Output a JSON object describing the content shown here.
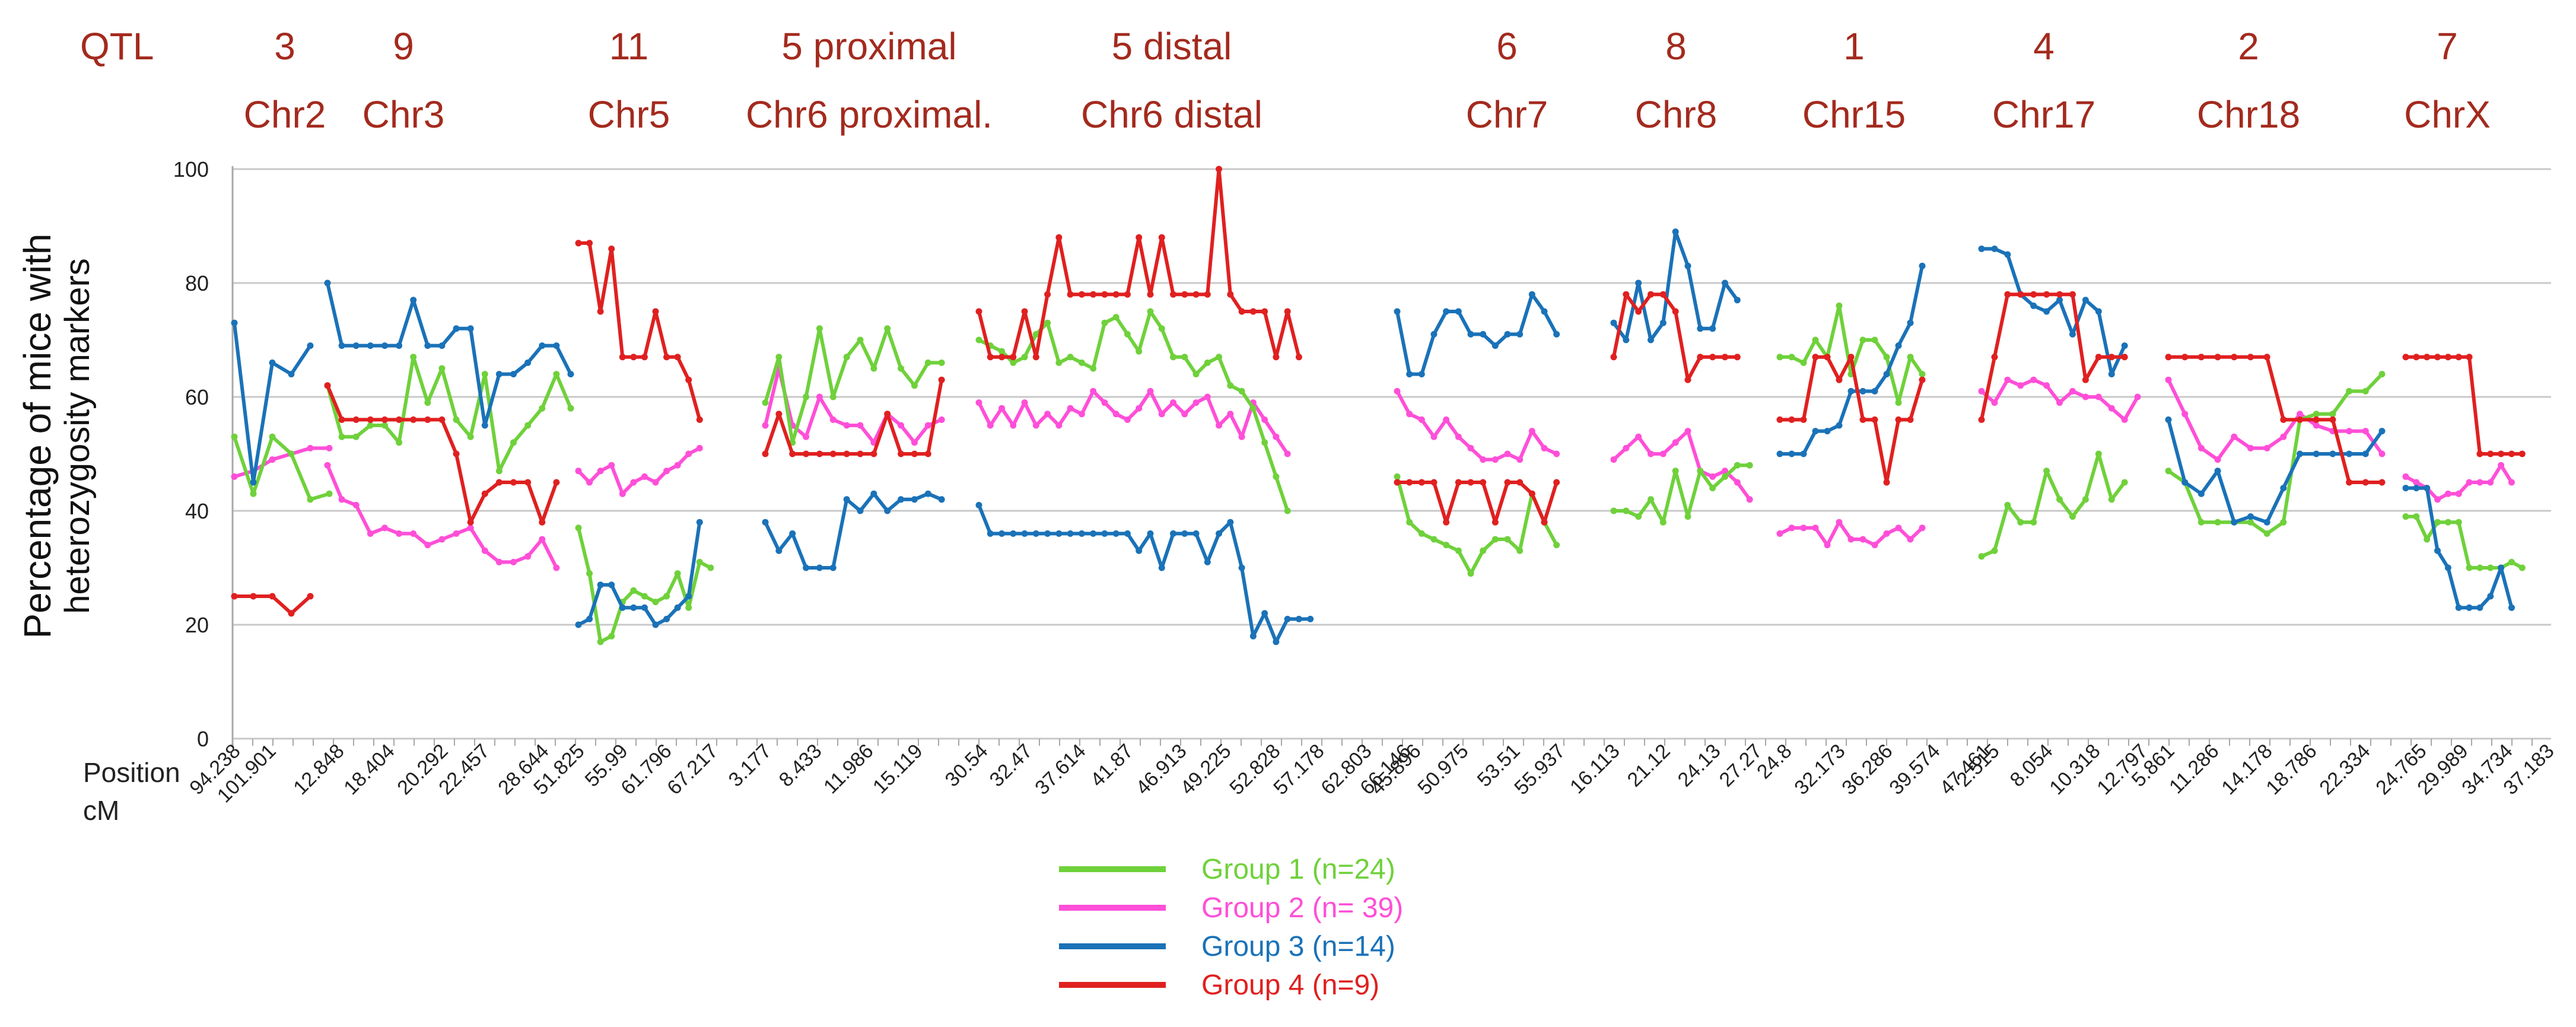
{
  "chart_data": {
    "type": "line",
    "ylabel_line1": "Percentage of mice with",
    "ylabel_line2": "heterozygosity markers",
    "ylim": [
      0,
      100
    ],
    "yticks": [
      "0",
      "20",
      "40",
      "60",
      "80",
      "100"
    ],
    "header_row_label": "QTL",
    "position_label_line1": "Position",
    "position_label_line2": "cM",
    "colors": {
      "group1": "#6fd13b",
      "group2": "#ff4fd8",
      "group3": "#1a72b8",
      "group4": "#e02020",
      "header": "#a32a1e",
      "grid": "#c9c9c9"
    },
    "legend": [
      {
        "label": "Group 1 (n=24)",
        "color": "#6fd13b"
      },
      {
        "label": "Group 2 (n= 39)",
        "color": "#ff4fd8"
      },
      {
        "label": "Group 3 (n=14)",
        "color": "#1a72b8"
      },
      {
        "label": "Group 4 (n=9)",
        "color": "#e02020"
      }
    ],
    "headers": [
      {
        "qtl": "3",
        "chr": "Chr2"
      },
      {
        "qtl": "9",
        "chr": "Chr3"
      },
      {
        "qtl": "11",
        "chr": "Chr5"
      },
      {
        "qtl": "5 proximal",
        "chr": "Chr6 proximal."
      },
      {
        "qtl": "5 distal",
        "chr": "Chr6 distal"
      },
      {
        "qtl": "6",
        "chr": "Chr7"
      },
      {
        "qtl": "8",
        "chr": "Chr8"
      },
      {
        "qtl": "1",
        "chr": "Chr15"
      },
      {
        "qtl": "4",
        "chr": "Chr17"
      },
      {
        "qtl": "2",
        "chr": "Chr18"
      },
      {
        "qtl": "7",
        "chr": "ChrX"
      }
    ],
    "position_ticks": [
      "94.238",
      "101.901",
      "12.848",
      "18.404",
      "20.292",
      "22.457",
      "28.644",
      "51.825",
      "55.99",
      "61.796",
      "67.217",
      "3.177",
      "8.433",
      "11.986",
      "15.119",
      "30.54",
      "32.47",
      "37.614",
      "41.87",
      "46.913",
      "49.225",
      "52.828",
      "57.178",
      "62.803",
      "66.146",
      "45.896",
      "50.975",
      "53.51",
      "55.937",
      "16.113",
      "21.12",
      "24.13",
      "27.27",
      "24.8",
      "32.173",
      "36.286",
      "39.574",
      "47.461",
      "2.515",
      "8.054",
      "10.318",
      "12.797",
      "5.861",
      "11.286",
      "14.178",
      "18.786",
      "22.334",
      "24.765",
      "29.989",
      "34.734",
      "37.183"
    ],
    "segments": [
      {
        "chr": "Chr2",
        "n": 6,
        "group1": [
          53,
          43,
          53,
          50,
          42,
          43
        ],
        "group2": [
          46,
          47,
          49,
          50,
          51,
          51
        ],
        "group3": [
          73,
          45,
          66,
          64,
          69,
          null
        ],
        "group4": [
          25,
          25,
          25,
          22,
          25,
          null
        ]
      },
      {
        "chr": "Chr3",
        "n": 18,
        "group1": [
          62,
          53,
          53,
          55,
          55,
          52,
          67,
          59,
          65,
          56,
          53,
          64,
          47,
          52,
          55,
          58,
          64,
          58
        ],
        "group2": [
          48,
          42,
          41,
          36,
          37,
          36,
          36,
          34,
          35,
          36,
          37,
          33,
          31,
          31,
          32,
          35,
          30,
          null
        ],
        "group3": [
          80,
          69,
          69,
          69,
          69,
          69,
          77,
          69,
          69,
          72,
          72,
          55,
          64,
          64,
          66,
          69,
          69,
          64
        ],
        "group4": [
          62,
          56,
          56,
          56,
          56,
          56,
          56,
          56,
          56,
          50,
          38,
          43,
          45,
          45,
          45,
          38,
          45,
          null
        ]
      },
      {
        "chr": "Chr5",
        "n": 15,
        "group1": [
          37,
          29,
          17,
          18,
          24,
          26,
          25,
          24,
          25,
          29,
          23,
          31,
          30,
          null,
          null
        ],
        "group2": [
          47,
          45,
          47,
          48,
          43,
          45,
          46,
          45,
          47,
          48,
          50,
          51,
          null,
          null,
          null
        ],
        "group3": [
          20,
          21,
          27,
          27,
          23,
          23,
          23,
          20,
          21,
          23,
          25,
          38,
          null,
          null,
          null
        ],
        "group4": [
          87,
          87,
          75,
          86,
          67,
          67,
          67,
          75,
          67,
          67,
          63,
          56,
          null,
          null,
          null
        ]
      },
      {
        "chr": "Chr6 proximal.",
        "n": 15,
        "group1": [
          59,
          67,
          52,
          60,
          72,
          60,
          67,
          70,
          65,
          72,
          65,
          62,
          66,
          66,
          null
        ],
        "group2": [
          55,
          65,
          55,
          53,
          60,
          56,
          55,
          55,
          52,
          57,
          55,
          52,
          55,
          56,
          null
        ],
        "group3": [
          38,
          33,
          36,
          30,
          30,
          30,
          42,
          40,
          43,
          40,
          42,
          42,
          43,
          42,
          null
        ],
        "group4": [
          50,
          57,
          50,
          50,
          50,
          50,
          50,
          50,
          50,
          57,
          50,
          50,
          50,
          63,
          null
        ]
      },
      {
        "chr": "Chr6 distal",
        "n": 35,
        "group1": [
          70,
          69,
          68,
          66,
          67,
          71,
          73,
          66,
          67,
          66,
          65,
          73,
          74,
          71,
          68,
          75,
          72,
          67,
          67,
          64,
          66,
          67,
          62,
          61,
          58,
          52,
          46,
          40,
          null,
          null,
          null,
          null,
          null,
          null,
          null
        ],
        "group2": [
          59,
          55,
          58,
          55,
          59,
          55,
          57,
          55,
          58,
          57,
          61,
          59,
          57,
          56,
          58,
          61,
          57,
          59,
          57,
          59,
          60,
          55,
          57,
          53,
          59,
          56,
          53,
          50,
          null,
          null,
          null,
          null,
          null,
          null,
          null
        ],
        "group3": [
          41,
          36,
          36,
          36,
          36,
          36,
          36,
          36,
          36,
          36,
          36,
          36,
          36,
          36,
          33,
          36,
          30,
          36,
          36,
          36,
          31,
          36,
          38,
          30,
          18,
          22,
          17,
          21,
          21,
          21,
          null,
          null,
          null,
          null,
          null
        ],
        "group4": [
          75,
          67,
          67,
          67,
          75,
          67,
          78,
          88,
          78,
          78,
          78,
          78,
          78,
          78,
          88,
          78,
          88,
          78,
          78,
          78,
          78,
          100,
          78,
          75,
          75,
          75,
          67,
          75,
          67,
          null,
          null,
          null,
          null,
          null,
          null
        ]
      },
      {
        "chr": "Chr7",
        "n": 16,
        "group1": [
          46,
          38,
          36,
          35,
          34,
          33,
          29,
          33,
          35,
          35,
          33,
          43,
          38,
          34,
          null,
          null
        ],
        "group2": [
          61,
          57,
          56,
          53,
          56,
          53,
          51,
          49,
          49,
          50,
          49,
          54,
          51,
          50,
          null,
          null
        ],
        "group3": [
          75,
          64,
          64,
          71,
          75,
          75,
          71,
          71,
          69,
          71,
          71,
          78,
          75,
          71,
          null,
          null
        ],
        "group4": [
          45,
          45,
          45,
          45,
          38,
          45,
          45,
          45,
          38,
          45,
          45,
          43,
          38,
          45,
          null,
          null
        ]
      },
      {
        "chr": "Chr8",
        "n": 13,
        "group1": [
          40,
          40,
          39,
          42,
          38,
          47,
          39,
          47,
          44,
          46,
          48,
          48,
          null
        ],
        "group2": [
          49,
          51,
          53,
          50,
          50,
          52,
          54,
          47,
          46,
          47,
          45,
          42,
          null
        ],
        "group3": [
          73,
          70,
          80,
          70,
          73,
          89,
          83,
          72,
          72,
          80,
          77,
          null,
          null
        ],
        "group4": [
          67,
          78,
          75,
          78,
          78,
          75,
          63,
          67,
          67,
          67,
          67,
          null,
          null
        ]
      },
      {
        "chr": "Chr15",
        "n": 15,
        "group1": [
          67,
          67,
          66,
          70,
          67,
          76,
          64,
          70,
          70,
          67,
          59,
          67,
          64,
          null,
          null
        ],
        "group2": [
          36,
          37,
          37,
          37,
          34,
          38,
          35,
          35,
          34,
          36,
          37,
          35,
          37,
          null,
          null
        ],
        "group3": [
          50,
          50,
          50,
          54,
          54,
          55,
          61,
          61,
          61,
          64,
          69,
          73,
          83,
          null,
          null
        ],
        "group4": [
          56,
          56,
          56,
          67,
          67,
          63,
          67,
          56,
          56,
          45,
          56,
          56,
          63,
          null,
          null
        ]
      },
      {
        "chr": "Chr17",
        "n": 14,
        "group1": [
          32,
          33,
          41,
          38,
          38,
          47,
          42,
          39,
          42,
          50,
          42,
          45,
          null,
          null
        ],
        "group2": [
          61,
          59,
          63,
          62,
          63,
          62,
          59,
          61,
          60,
          60,
          58,
          56,
          60,
          null
        ],
        "group3": [
          86,
          86,
          85,
          78,
          76,
          75,
          77,
          71,
          77,
          75,
          64,
          69,
          null,
          null
        ],
        "group4": [
          56,
          67,
          78,
          78,
          78,
          78,
          78,
          78,
          63,
          67,
          67,
          67,
          null,
          null
        ]
      },
      {
        "chr": "Chr18",
        "n": 14,
        "group1": [
          47,
          45,
          38,
          38,
          38,
          38,
          36,
          38,
          56,
          57,
          57,
          61,
          61,
          64
        ],
        "group2": [
          63,
          57,
          51,
          49,
          53,
          51,
          51,
          53,
          57,
          55,
          54,
          54,
          54,
          50
        ],
        "group3": [
          56,
          45,
          43,
          47,
          38,
          39,
          38,
          44,
          50,
          50,
          50,
          50,
          50,
          54
        ],
        "group4": [
          67,
          67,
          67,
          67,
          67,
          67,
          67,
          56,
          56,
          56,
          56,
          45,
          45,
          45
        ]
      },
      {
        "chr": "ChrX",
        "n": 14,
        "group1": [
          39,
          39,
          35,
          38,
          38,
          38,
          30,
          30,
          30,
          30,
          31,
          30,
          null,
          null
        ],
        "group2": [
          46,
          45,
          44,
          42,
          43,
          43,
          45,
          45,
          45,
          48,
          45,
          null,
          null,
          null
        ],
        "group3": [
          44,
          44,
          44,
          33,
          30,
          23,
          23,
          23,
          25,
          30,
          23,
          null,
          null,
          null
        ],
        "group4": [
          67,
          67,
          67,
          67,
          67,
          67,
          67,
          50,
          50,
          50,
          50,
          50,
          null,
          null
        ]
      }
    ]
  }
}
